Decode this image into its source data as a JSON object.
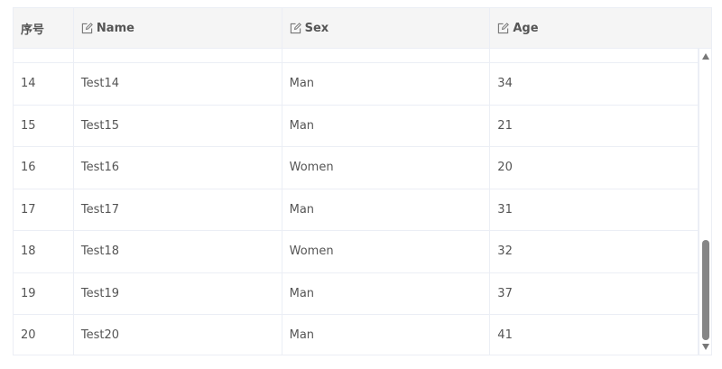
{
  "columns": [
    {
      "label": "序号",
      "icon": null
    },
    {
      "label": "Name",
      "icon": "edit-icon"
    },
    {
      "label": "Sex",
      "icon": "edit-icon"
    },
    {
      "label": "Age",
      "icon": "edit-icon"
    }
  ],
  "rows": [
    {
      "id": "14",
      "name": "Test14",
      "sex": "Man",
      "age": "34"
    },
    {
      "id": "15",
      "name": "Test15",
      "sex": "Man",
      "age": "21"
    },
    {
      "id": "16",
      "name": "Test16",
      "sex": "Women",
      "age": "20"
    },
    {
      "id": "17",
      "name": "Test17",
      "sex": "Man",
      "age": "31"
    },
    {
      "id": "18",
      "name": "Test18",
      "sex": "Women",
      "age": "32"
    },
    {
      "id": "19",
      "name": "Test19",
      "sex": "Man",
      "age": "37"
    },
    {
      "id": "20",
      "name": "Test20",
      "sex": "Man",
      "age": "41"
    }
  ],
  "scroll": {
    "position_fraction": 0.95
  }
}
